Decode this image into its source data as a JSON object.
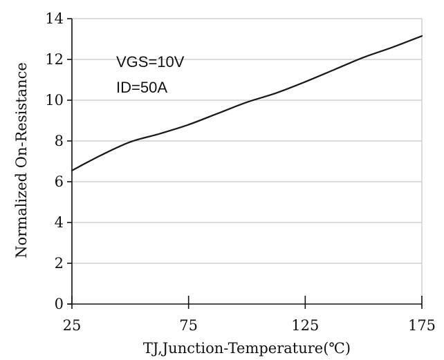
{
  "chart_data": {
    "type": "line",
    "xlabel": "TJ,Junction-Temperature(℃)",
    "ylabel": "Normalized On-Resistance",
    "xlim": [
      25,
      175
    ],
    "ylim": [
      0,
      14
    ],
    "x_ticks": [
      25,
      75,
      125,
      175
    ],
    "y_ticks": [
      0,
      2,
      4,
      6,
      8,
      10,
      12,
      14
    ],
    "grid": "horizontal",
    "annotations": [
      "VGS=10V",
      "ID=50A"
    ],
    "series": [
      {
        "color": "#1a1a1a",
        "x": [
          25,
          37.5,
          50,
          62.5,
          75,
          87.5,
          100,
          112.5,
          125,
          137.5,
          150,
          162.5,
          175
        ],
        "y": [
          6.55,
          7.3,
          7.95,
          8.35,
          8.8,
          9.35,
          9.9,
          10.35,
          10.9,
          11.5,
          12.1,
          12.6,
          13.15
        ]
      }
    ]
  }
}
